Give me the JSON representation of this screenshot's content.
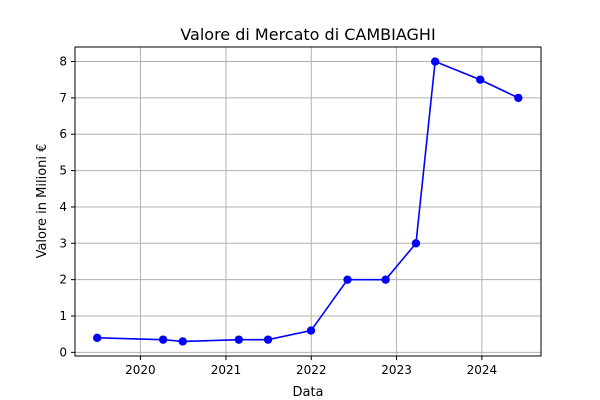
{
  "chart_data": {
    "type": "line",
    "title": "Valore di Mercato di CAMBIAGHI",
    "xlabel": "Data",
    "ylabel": "Valore in Milioni €",
    "x_ticks": [
      {
        "date": "2020-01-01",
        "label": "2020"
      },
      {
        "date": "2021-01-01",
        "label": "2021"
      },
      {
        "date": "2022-01-01",
        "label": "2022"
      },
      {
        "date": "2023-01-01",
        "label": "2023"
      },
      {
        "date": "2024-01-01",
        "label": "2024"
      }
    ],
    "y_ticks": [
      0,
      1,
      2,
      3,
      4,
      5,
      6,
      7,
      8
    ],
    "xlim": [
      "2019-03-27",
      "2024-09-10"
    ],
    "ylim": [
      -0.1,
      8.4
    ],
    "grid": true,
    "series": [
      {
        "color": "#0000ff",
        "points": [
          {
            "x": "2019-06-30",
            "y": 0.4
          },
          {
            "x": "2020-04-07",
            "y": 0.35
          },
          {
            "x": "2020-06-30",
            "y": 0.3
          },
          {
            "x": "2021-02-25",
            "y": 0.35
          },
          {
            "x": "2021-06-30",
            "y": 0.35
          },
          {
            "x": "2021-12-31",
            "y": 0.6
          },
          {
            "x": "2022-06-05",
            "y": 2.0
          },
          {
            "x": "2022-11-15",
            "y": 2.0
          },
          {
            "x": "2023-03-25",
            "y": 3.0
          },
          {
            "x": "2023-06-15",
            "y": 8.0
          },
          {
            "x": "2023-12-25",
            "y": 7.5
          },
          {
            "x": "2024-06-05",
            "y": 7.0
          }
        ]
      }
    ]
  }
}
